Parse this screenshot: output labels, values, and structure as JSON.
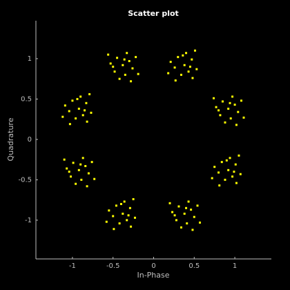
{
  "chart_data": {
    "type": "scatter",
    "title": "Scatter plot",
    "x_label": "In-Phase",
    "y_label": "Quadrature",
    "xlim": [
      -1.45,
      1.45
    ],
    "ylim": [
      -1.48,
      1.47
    ],
    "xticks": [
      -1,
      -0.5,
      0,
      0.5,
      1
    ],
    "yticks": [
      -1,
      -0.5,
      0,
      0.5,
      1
    ],
    "series": [
      {
        "color": "#ffff00",
        "x": [
          0.92,
          1.0,
          0.85,
          1.04,
          0.82,
          0.95,
          0.77,
          1.08,
          0.97,
          0.88,
          1.11,
          0.74,
          1.02,
          0.8,
          0.94,
          0.38,
          0.43,
          0.47,
          0.34,
          0.3,
          0.26,
          0.4,
          0.48,
          0.53,
          0.21,
          0.27,
          0.51,
          0.18,
          0.36,
          0.45,
          -0.38,
          -0.3,
          -0.45,
          -0.26,
          -0.48,
          -0.35,
          -0.53,
          -0.22,
          -0.33,
          -0.42,
          -0.19,
          -0.56,
          -0.28,
          -0.5,
          -0.36,
          -0.92,
          -0.87,
          -0.83,
          -0.96,
          -1.0,
          -1.04,
          -0.9,
          -0.82,
          -0.77,
          -1.09,
          -1.03,
          -0.79,
          -1.12,
          -0.94,
          -0.85,
          -0.92,
          -0.84,
          -0.99,
          -0.8,
          -1.02,
          -0.89,
          -1.07,
          -0.76,
          -0.87,
          -0.96,
          -0.73,
          -1.1,
          -0.82,
          -1.04,
          -0.9,
          -0.38,
          -0.33,
          -0.29,
          -0.42,
          -0.46,
          -0.5,
          -0.36,
          -0.28,
          -0.23,
          -0.55,
          -0.49,
          -0.25,
          -0.58,
          -0.4,
          -0.31,
          0.38,
          0.46,
          0.31,
          0.5,
          0.28,
          0.41,
          0.23,
          0.54,
          0.43,
          0.34,
          0.57,
          0.2,
          0.48,
          0.26,
          0.4,
          0.92,
          0.97,
          1.01,
          0.88,
          0.84,
          0.8,
          0.94,
          1.02,
          1.07,
          0.75,
          0.81,
          1.05,
          0.72,
          0.9,
          0.99
        ],
        "y": [
          0.38,
          0.43,
          0.47,
          0.34,
          0.3,
          0.26,
          0.4,
          0.48,
          0.53,
          0.21,
          0.27,
          0.51,
          0.18,
          0.36,
          0.45,
          0.92,
          0.84,
          0.99,
          0.8,
          1.02,
          0.89,
          1.07,
          0.76,
          0.87,
          0.96,
          0.73,
          1.1,
          0.82,
          1.04,
          0.9,
          0.92,
          0.97,
          1.01,
          0.88,
          0.84,
          0.8,
          0.94,
          1.02,
          1.07,
          0.75,
          0.81,
          1.05,
          0.72,
          0.9,
          0.99,
          0.38,
          0.3,
          0.45,
          0.26,
          0.48,
          0.35,
          0.53,
          0.22,
          0.33,
          0.42,
          0.19,
          0.56,
          0.28,
          0.5,
          0.36,
          -0.38,
          -0.33,
          -0.29,
          -0.42,
          -0.46,
          -0.5,
          -0.36,
          -0.28,
          -0.23,
          -0.55,
          -0.49,
          -0.25,
          -0.58,
          -0.4,
          -0.31,
          -0.92,
          -1.0,
          -0.85,
          -1.04,
          -0.82,
          -0.95,
          -0.77,
          -1.08,
          -0.97,
          -0.88,
          -1.11,
          -0.74,
          -1.02,
          -0.8,
          -0.94,
          -0.92,
          -0.87,
          -0.83,
          -0.96,
          -1.0,
          -1.04,
          -0.9,
          -0.82,
          -0.77,
          -1.09,
          -1.03,
          -0.79,
          -1.12,
          -0.94,
          -0.85,
          -0.38,
          -0.46,
          -0.31,
          -0.5,
          -0.28,
          -0.41,
          -0.23,
          -0.54,
          -0.43,
          -0.34,
          -0.57,
          -0.2,
          -0.48,
          -0.26,
          -0.4
        ]
      }
    ]
  }
}
